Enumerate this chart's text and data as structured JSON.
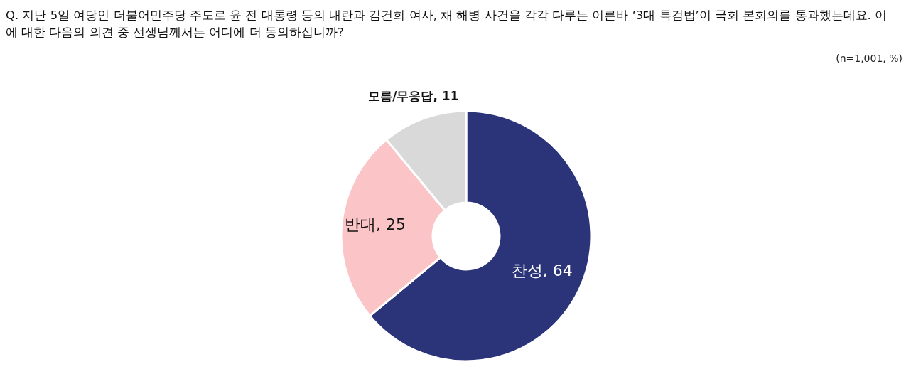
{
  "chart_data": {
    "type": "donut",
    "title": "Q. 지난 5일 여당인 더불어민주당 주도로 윤 전 대통령 등의 내란과 김건희 여사, 채 해병 사건을 각각 다루는 이른바 ‘3대 특검법’이 국회 본회의를 통과했는데요. 이에 대한 다음의 의견 중 선생님께서는 어디에 더 동의하십니까?",
    "annotations": [
      "(n=1,001,  %)"
    ],
    "categories": [
      "찬성",
      "반대",
      "모름/무응답"
    ],
    "values": [
      64,
      25,
      11
    ],
    "colors": [
      "#2b3479",
      "#fbc4c6",
      "#d9d9d9"
    ],
    "value_labels": [
      ", 64",
      ", 25",
      ", 11"
    ],
    "legend": false
  }
}
